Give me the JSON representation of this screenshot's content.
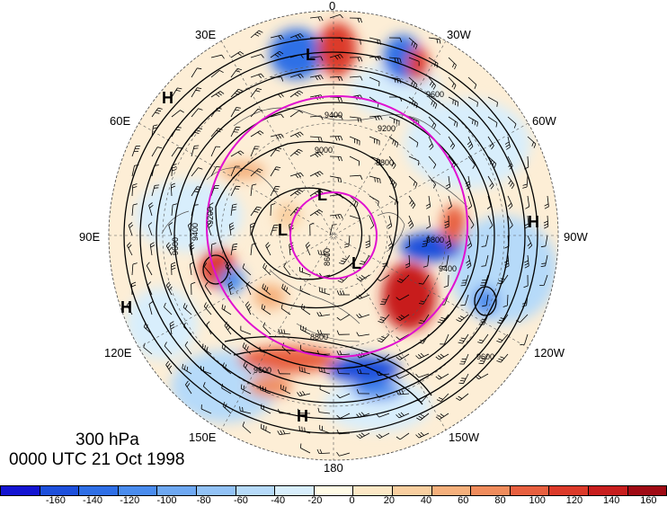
{
  "title": {
    "level": "300 hPa",
    "time": "0000 UTC 21 Oct 1998"
  },
  "longitude_labels": {
    "lon_0": "0",
    "lon_30w": "30W",
    "lon_60w": "60W",
    "lon_90w": "90W",
    "lon_120w": "120W",
    "lon_150w": "150W",
    "lon_180": "180",
    "lon_150e": "150E",
    "lon_120e": "120E",
    "lon_90e": "90E",
    "lon_60e": "60E",
    "lon_30e": "30E"
  },
  "pressure_centers": [
    "H",
    "H",
    "H",
    "H",
    "L",
    "L",
    "L",
    "L"
  ],
  "contour_labels": [
    "9600",
    "9400",
    "9200",
    "8800",
    "9000",
    "9200",
    "9400",
    "9600",
    "9800",
    "8600",
    "8800",
    "9600",
    "9600",
    "9400"
  ],
  "colorbar": {
    "ticks": [
      "-160",
      "-140",
      "-120",
      "-100",
      "-80",
      "-60",
      "-40",
      "-20",
      "0",
      "20",
      "40",
      "60",
      "80",
      "100",
      "120",
      "140",
      "160"
    ],
    "colors": [
      "#1414d2",
      "#1e50dc",
      "#2f6fe6",
      "#4a8cee",
      "#6ea8f2",
      "#92c2f6",
      "#b6daf9",
      "#d8eefc",
      "#fffbe6",
      "#fce8c6",
      "#f9cfa0",
      "#f5b07c",
      "#f08c5c",
      "#e86040",
      "#dc3a2a",
      "#c81e1e",
      "#a00a14"
    ]
  },
  "style_colors": {
    "highlight_circle": "#e010d0",
    "contour": "#000000",
    "coast": "#555555"
  }
}
